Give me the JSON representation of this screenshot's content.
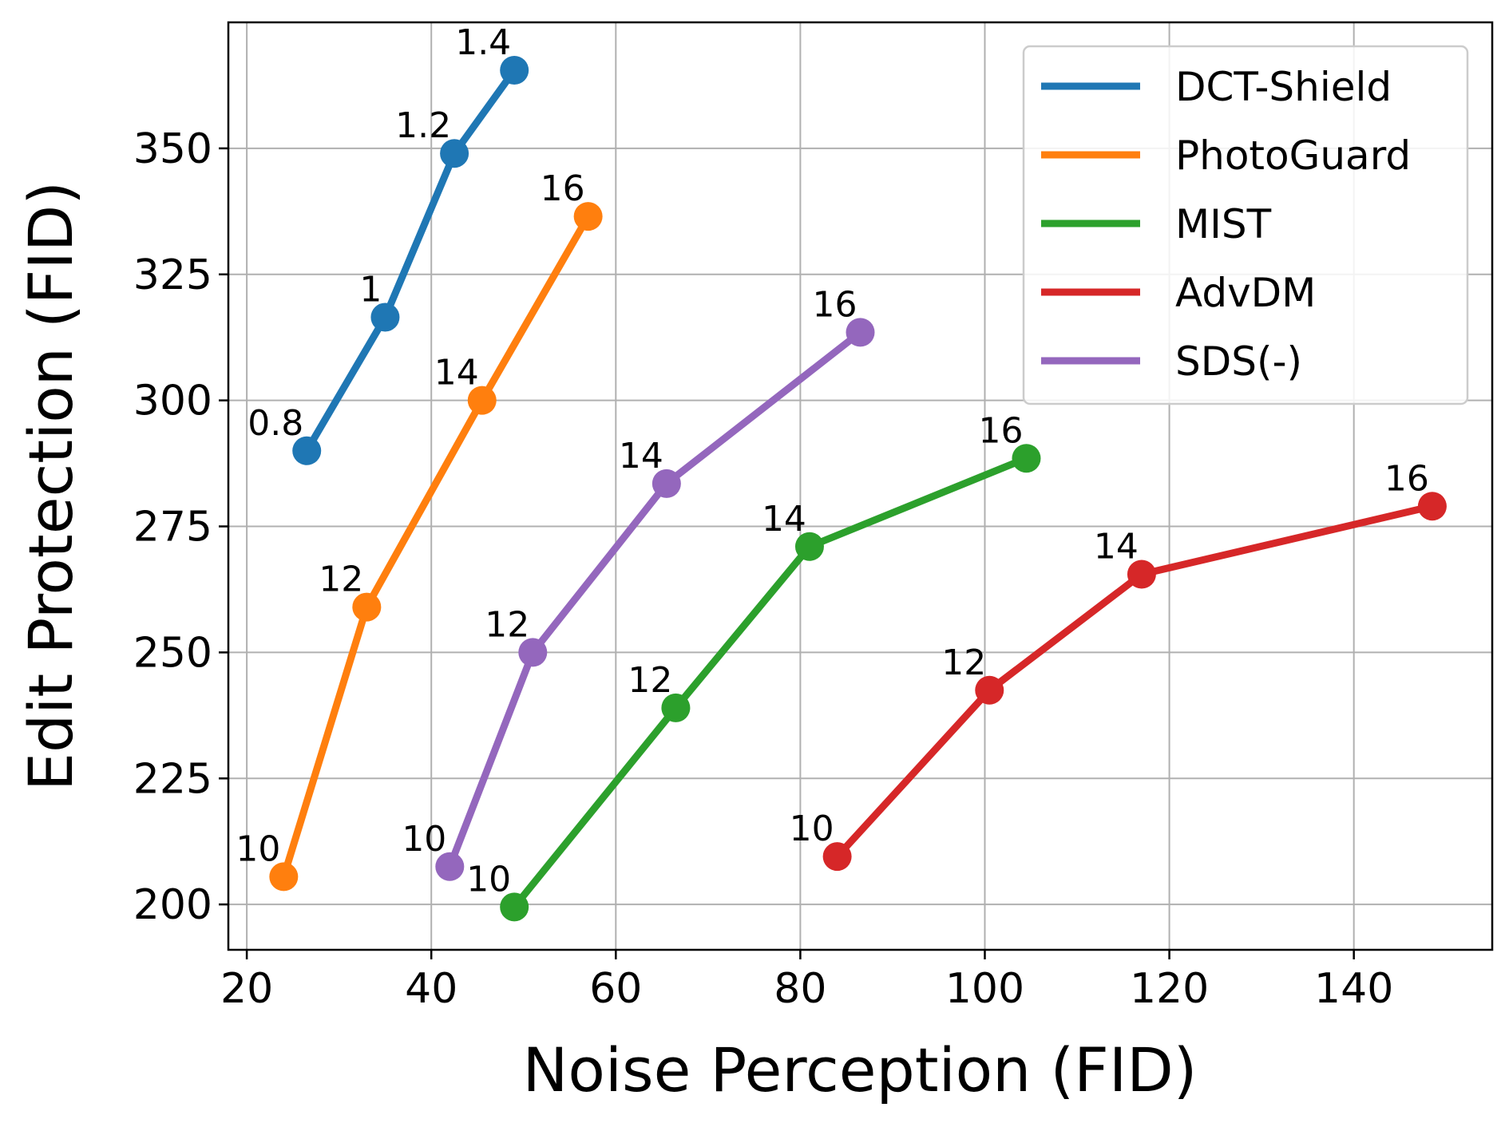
{
  "chart_data": {
    "type": "line",
    "title": "",
    "xlabel": "Noise Perception (FID)",
    "ylabel": "Edit Protection (FID)",
    "xlim": [
      18,
      155
    ],
    "ylim": [
      191,
      375
    ],
    "xticks": [
      20,
      40,
      60,
      80,
      100,
      120,
      140
    ],
    "yticks": [
      200,
      225,
      250,
      275,
      300,
      325,
      350
    ],
    "grid": true,
    "legend_position": "top-right",
    "series": [
      {
        "name": "DCT-Shield",
        "color": "#1f77b4",
        "points": [
          {
            "x": 26.5,
            "y": 290,
            "label": "0.8"
          },
          {
            "x": 35.0,
            "y": 316.5,
            "label": "1"
          },
          {
            "x": 42.5,
            "y": 349,
            "label": "1.2"
          },
          {
            "x": 49.0,
            "y": 365.5,
            "label": "1.4"
          }
        ]
      },
      {
        "name": "PhotoGuard",
        "color": "#ff7f0e",
        "points": [
          {
            "x": 24.0,
            "y": 205.5,
            "label": "10"
          },
          {
            "x": 33.0,
            "y": 259,
            "label": "12"
          },
          {
            "x": 45.5,
            "y": 300,
            "label": "14"
          },
          {
            "x": 57.0,
            "y": 336.5,
            "label": "16"
          }
        ]
      },
      {
        "name": "MIST",
        "color": "#2ca02c",
        "points": [
          {
            "x": 49.0,
            "y": 199.5,
            "label": "10"
          },
          {
            "x": 66.5,
            "y": 239,
            "label": "12"
          },
          {
            "x": 81.0,
            "y": 271,
            "label": "14"
          },
          {
            "x": 104.5,
            "y": 288.5,
            "label": "16"
          }
        ]
      },
      {
        "name": "AdvDM",
        "color": "#d62728",
        "points": [
          {
            "x": 84.0,
            "y": 209.5,
            "label": "10"
          },
          {
            "x": 100.5,
            "y": 242.5,
            "label": "12"
          },
          {
            "x": 117.0,
            "y": 265.5,
            "label": "14"
          },
          {
            "x": 148.5,
            "y": 279,
            "label": "16"
          }
        ]
      },
      {
        "name": "SDS(-)",
        "color": "#9467bd",
        "points": [
          {
            "x": 42.0,
            "y": 207.5,
            "label": "10"
          },
          {
            "x": 51.0,
            "y": 250,
            "label": "12"
          },
          {
            "x": 65.5,
            "y": 283.5,
            "label": "14"
          },
          {
            "x": 86.5,
            "y": 313.5,
            "label": "16"
          }
        ]
      }
    ]
  }
}
